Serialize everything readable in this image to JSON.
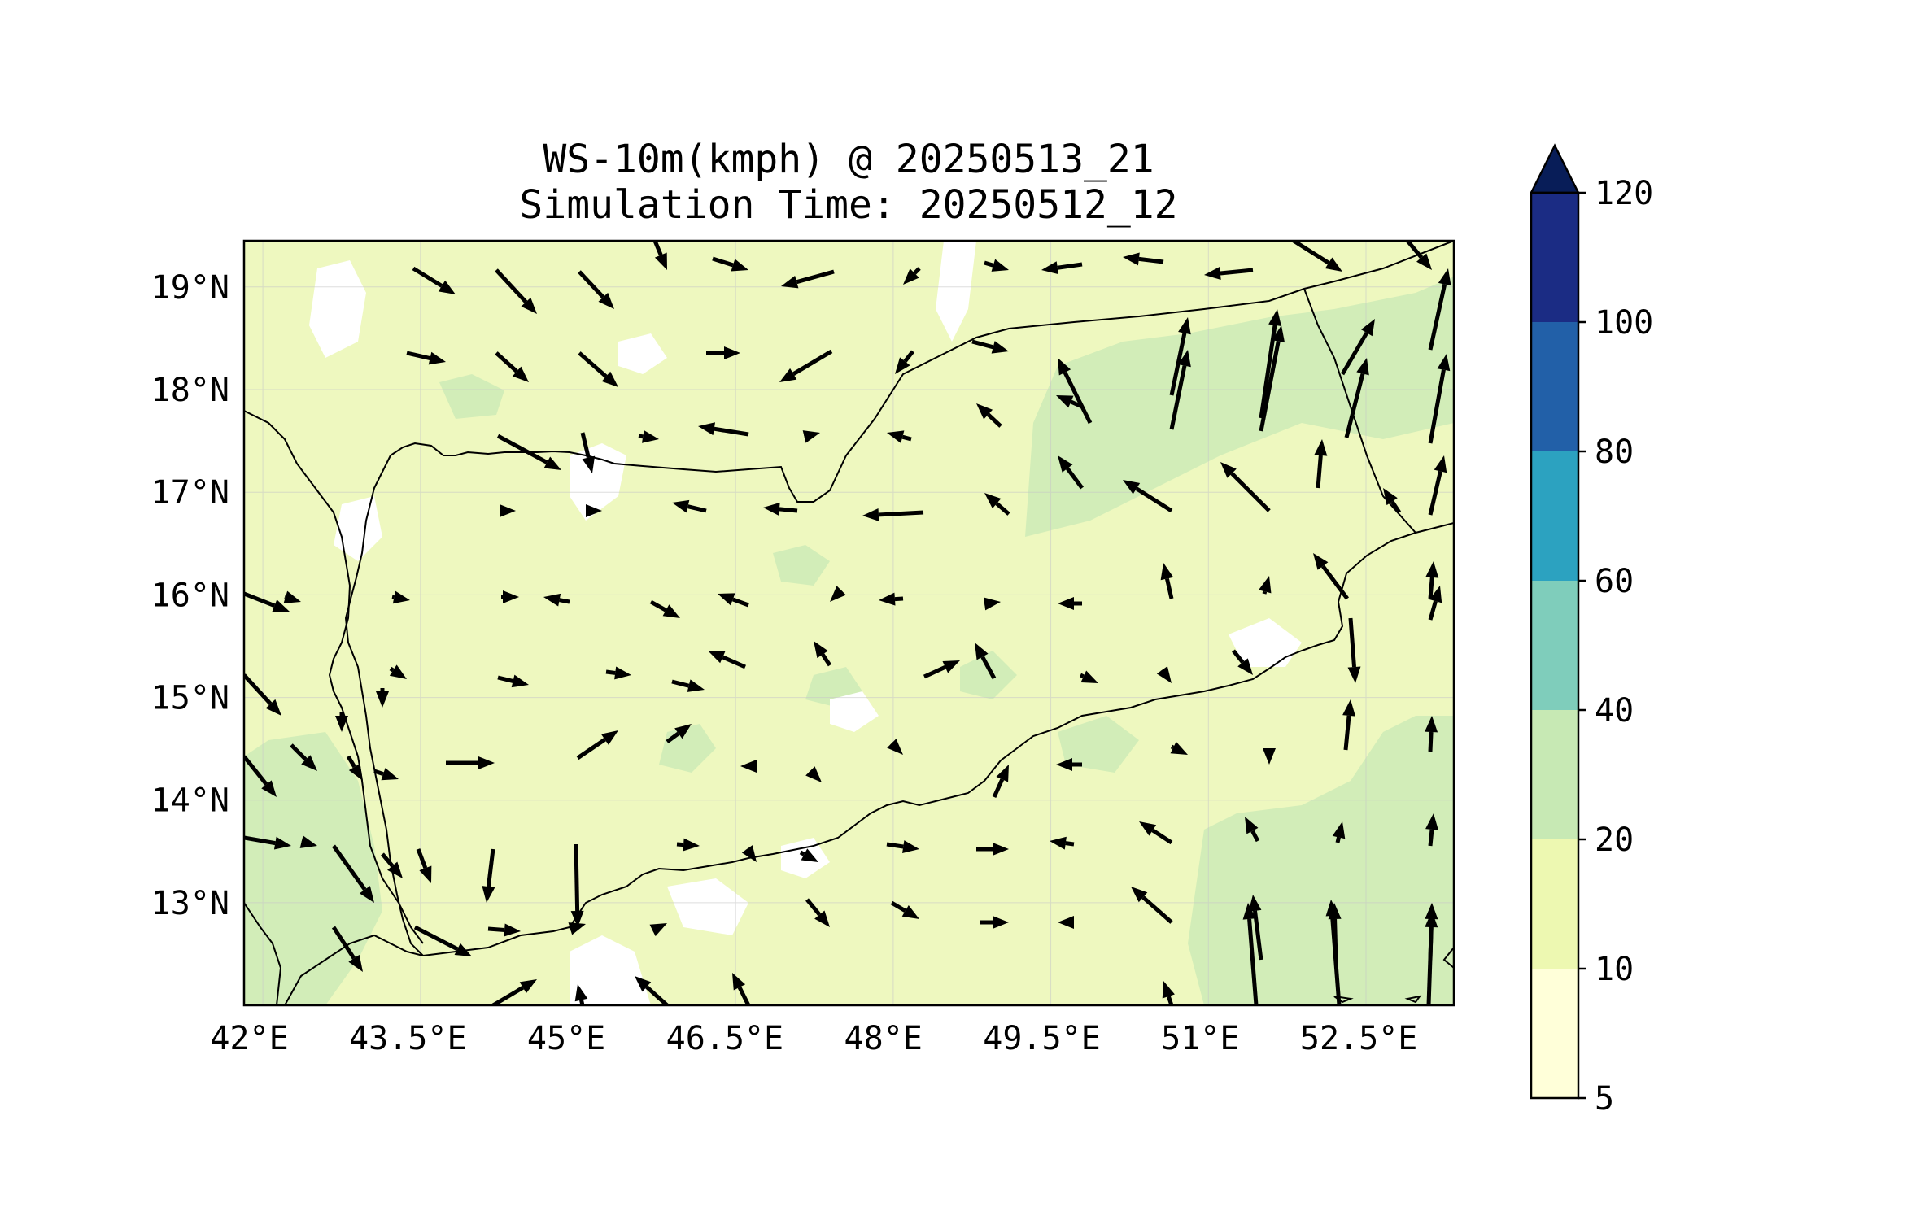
{
  "figure": {
    "title_line1": "WS-10m(kmph) @ 20250513_21",
    "title_line2": "Simulation Time: 20250512_12"
  },
  "map": {
    "lon_range": [
      41.95,
      53.4
    ],
    "lat_range": [
      12.0,
      19.45
    ],
    "lon_ticks": [
      "42°E",
      "43.5°E",
      "45°E",
      "46.5°E",
      "48°E",
      "49.5°E",
      "51°E",
      "52.5°E"
    ],
    "lat_ticks": [
      "19°N",
      "18°N",
      "17°N",
      "16°N",
      "15°N",
      "14°N",
      "13°N"
    ],
    "background_fill": "#eef8bf",
    "vector_color": "#000000",
    "coastline_color": "#000000"
  },
  "colorbar": {
    "levels": [
      "5",
      "10",
      "20",
      "40",
      "60",
      "80",
      "100",
      "120"
    ],
    "colors": [
      "#ffffd9",
      "#edf8b1",
      "#c7e9b4",
      "#7fcdbb",
      "#2ca2c0",
      "#2260a8",
      "#1b2c84"
    ],
    "extend_color": "#081d58"
  }
}
